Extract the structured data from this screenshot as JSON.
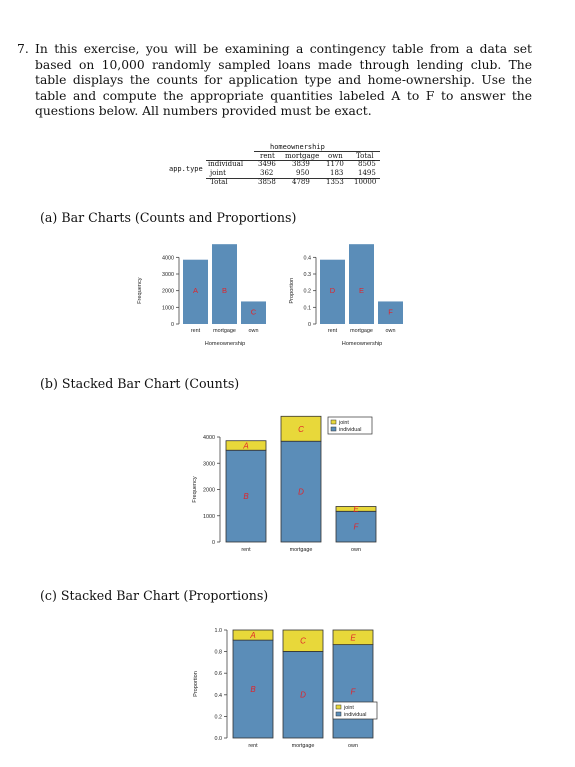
{
  "problem": {
    "number": "7.",
    "text": "In this exercise, you will be examining a contingency table from a data set based on 10,000 randomly sampled loans made through lending club. The table displays the counts for application type and home-ownership. Use the table and compute the appropriate quantities labeled A to F to answer the questions below. All numbers provided must be exact."
  },
  "table": {
    "col_var": "homeownership",
    "row_var": "app.type",
    "columns": [
      "rent",
      "mortgage",
      "own",
      "Total"
    ],
    "rows": [
      {
        "label": "individual",
        "values": [
          "3496",
          "3839",
          "1170",
          "8505"
        ]
      },
      {
        "label": "joint",
        "values": [
          "362",
          "950",
          "183",
          "1495"
        ]
      },
      {
        "label": "Total",
        "values": [
          "3858",
          "4789",
          "1353",
          "10000"
        ]
      }
    ]
  },
  "sections": {
    "a": "(a) Bar Charts (Counts and Proportions)",
    "b": "(b) Stacked Bar Chart (Counts)",
    "c": "(c) Stacked Bar Chart (Proportions)"
  },
  "colors": {
    "bar": "#5b8db8",
    "joint": "#e8d83a",
    "label": "#e0242a",
    "axis": "#444444"
  },
  "chart_data": [
    {
      "type": "bar",
      "id": "counts",
      "categories": [
        "rent",
        "mortgage",
        "own"
      ],
      "values": [
        3858,
        4789,
        1353
      ],
      "bar_labels": [
        "A",
        "B",
        "C"
      ],
      "xlabel": "Homeownership",
      "ylabel": "Frequency",
      "yticks": [
        0,
        1000,
        2000,
        3000,
        4000
      ],
      "ylim": [
        0,
        4800
      ]
    },
    {
      "type": "bar",
      "id": "proportions",
      "categories": [
        "rent",
        "mortgage",
        "own"
      ],
      "values": [
        0.3858,
        0.4789,
        0.1353
      ],
      "bar_labels": [
        "D",
        "E",
        "F"
      ],
      "xlabel": "Homeownership",
      "ylabel": "Proportion",
      "yticks": [
        0.0,
        0.1,
        0.2,
        0.3,
        0.4
      ],
      "ylim": [
        0,
        0.48
      ]
    },
    {
      "type": "bar",
      "id": "stacked-counts",
      "stacked": true,
      "categories": [
        "rent",
        "mortgage",
        "own"
      ],
      "series": [
        {
          "name": "individual",
          "values": [
            3496,
            3839,
            1170
          ],
          "labels": [
            "B",
            "D",
            "F"
          ]
        },
        {
          "name": "joint",
          "values": [
            362,
            950,
            183
          ],
          "labels": [
            "A",
            "C",
            "E"
          ]
        }
      ],
      "legend": [
        "joint",
        "individual"
      ],
      "legend_position": "top-right",
      "ylabel": "Frequency",
      "yticks": [
        0,
        1000,
        2000,
        3000,
        4000
      ],
      "ylim": [
        0,
        4800
      ]
    },
    {
      "type": "bar",
      "id": "stacked-proportions",
      "stacked": true,
      "categories": [
        "rent",
        "mortgage",
        "own"
      ],
      "series": [
        {
          "name": "individual",
          "values": [
            0.9062,
            0.8016,
            0.8647
          ],
          "labels": [
            "B",
            "D",
            "F"
          ]
        },
        {
          "name": "joint",
          "values": [
            0.0938,
            0.1984,
            0.1353
          ],
          "labels": [
            "A",
            "C",
            "E"
          ]
        }
      ],
      "legend": [
        "joint",
        "individual"
      ],
      "legend_position": "bottom-right",
      "ylabel": "Proportion",
      "yticks": [
        "0.0",
        "0.2",
        "0.4",
        "0.6",
        "0.8",
        "1.0"
      ],
      "ylim": [
        0,
        1
      ]
    }
  ]
}
